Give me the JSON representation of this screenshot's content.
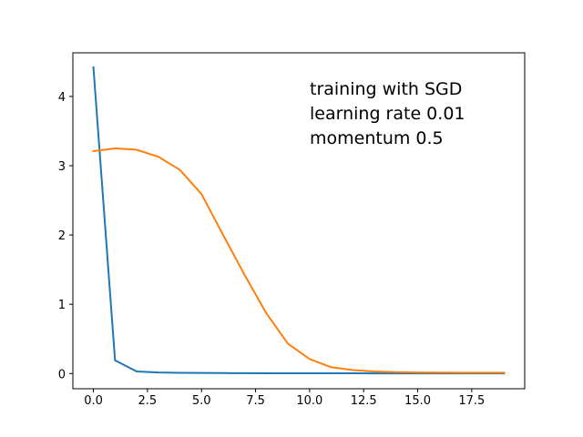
{
  "chart_data": {
    "type": "line",
    "title": "",
    "xlabel": "",
    "ylabel": "",
    "xlim": [
      -0.95,
      19.95
    ],
    "ylim": [
      -0.22,
      4.63
    ],
    "xticks": [
      0.0,
      2.5,
      5.0,
      7.5,
      10.0,
      12.5,
      15.0,
      17.5
    ],
    "xtick_labels": [
      "0.0",
      "2.5",
      "5.0",
      "7.5",
      "10.0",
      "12.5",
      "15.0",
      "17.5"
    ],
    "yticks": [
      0,
      1,
      2,
      3,
      4
    ],
    "ytick_labels": [
      "0",
      "1",
      "2",
      "3",
      "4"
    ],
    "grid": false,
    "legend": "none",
    "annotations": [
      "training with SGD",
      "learning rate 0.01",
      "momentum 0.5"
    ],
    "series": [
      {
        "color": "#1f77b4",
        "x": [
          0,
          1,
          2,
          3,
          4,
          5,
          6,
          7,
          8,
          9,
          10,
          11,
          12,
          13,
          14,
          15,
          16,
          17,
          18,
          19
        ],
        "values": [
          4.42,
          0.19,
          0.03,
          0.015,
          0.01,
          0.008,
          0.006,
          0.005,
          0.004,
          0.004,
          0.003,
          0.003,
          0.003,
          0.002,
          0.002,
          0.002,
          0.002,
          0.002,
          0.002,
          0.002
        ]
      },
      {
        "color": "#ff7f0e",
        "x": [
          0,
          1,
          2,
          3,
          4,
          5,
          6,
          7,
          8,
          9,
          10,
          11,
          12,
          13,
          14,
          15,
          16,
          17,
          18,
          19
        ],
        "values": [
          3.21,
          3.25,
          3.23,
          3.13,
          2.94,
          2.59,
          2.0,
          1.42,
          0.87,
          0.43,
          0.21,
          0.09,
          0.05,
          0.03,
          0.02,
          0.015,
          0.013,
          0.012,
          0.011,
          0.011
        ]
      }
    ]
  }
}
